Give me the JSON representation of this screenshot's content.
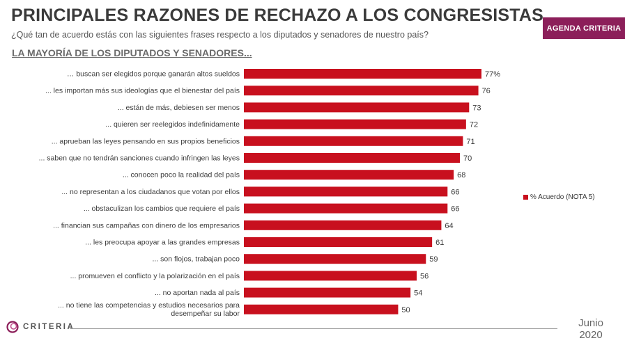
{
  "header": {
    "title": "PRINCIPALES RAZONES DE RECHAZO A LOS CONGRESISTAS",
    "subtitle": "¿Qué tan de acuerdo estás con las siguientes frases respecto a los diputados y senadores de nuestro país?",
    "badge": "AGENDA CRITERIA",
    "section": "LA MAYORÍA DE LOS DIPUTADOS Y SENADORES..."
  },
  "chart_data": {
    "type": "bar",
    "orientation": "horizontal",
    "categories": [
      "… buscan ser elegidos porque ganarán altos sueldos",
      "... les importan más sus ideologías que el bienestar del país",
      "... están de más, debiesen ser menos",
      "... quieren ser reelegidos indefinidamente",
      "... aprueban las leyes pensando en sus propios beneficios",
      "... saben que no tendrán sanciones cuando infringen las leyes",
      "... conocen poco la realidad del país",
      "... no representan a los ciudadanos que votan por ellos",
      "... obstaculizan los cambios que requiere el país",
      "... financian sus campañas con dinero de los empresarios",
      "... les preocupa apoyar a las grandes empresas",
      "... son flojos, trabajan poco",
      "... promueven el conflicto y la polarización en el país",
      "... no aportan nada al país",
      "... no tiene las competencias y estudios necesarios para desempeñar su labor"
    ],
    "values": [
      77,
      76,
      73,
      72,
      71,
      70,
      68,
      66,
      66,
      64,
      61,
      59,
      56,
      54,
      50
    ],
    "value_labels": [
      "77%",
      "76",
      "73",
      "72",
      "71",
      "70",
      "68",
      "66",
      "66",
      "64",
      "61",
      "59",
      "56",
      "54",
      "50"
    ],
    "series_name": "% Acuerdo (NOTA 5)",
    "color": "#c8101e",
    "xlim": [
      0,
      77
    ],
    "legend_position": "right"
  },
  "footer": {
    "logo": "CRITERIA",
    "date_month": "Junio",
    "date_year": "2020"
  }
}
